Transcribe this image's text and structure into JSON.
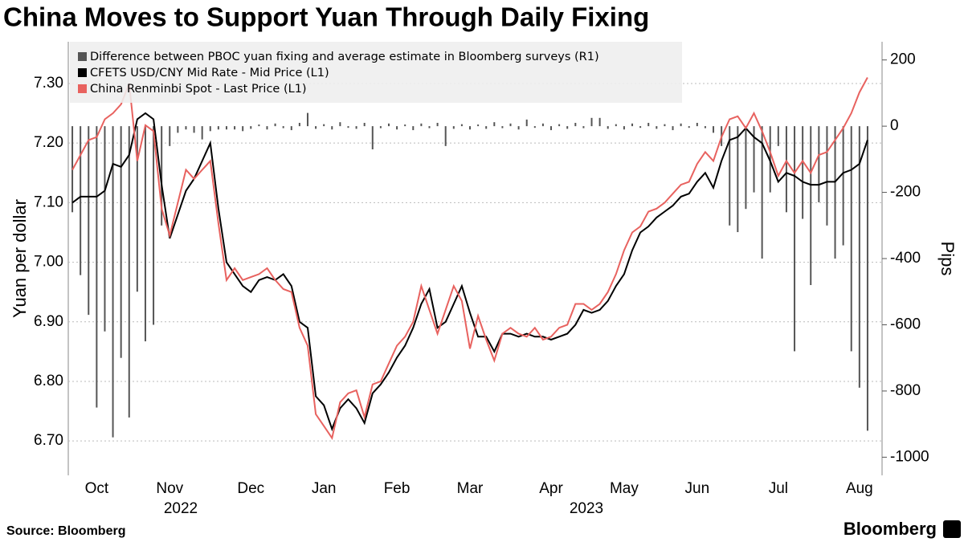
{
  "chart_data": {
    "type": "bar-line",
    "title": "China Moves to Support Yuan Through Daily Fixing",
    "y_label": "Yuan per dollar",
    "y2_label": "Pips",
    "source": "Source: Bloomberg",
    "brand": "Bloomberg",
    "years": [
      "2022",
      "2023"
    ],
    "categories": [
      null,
      null,
      null,
      "Oct",
      null,
      null,
      null,
      null,
      null,
      null,
      null,
      null,
      "Nov",
      null,
      null,
      null,
      null,
      null,
      null,
      null,
      null,
      null,
      "Dec",
      null,
      null,
      null,
      null,
      null,
      null,
      null,
      null,
      "Jan",
      null,
      null,
      null,
      null,
      null,
      null,
      null,
      null,
      "Feb",
      null,
      null,
      null,
      null,
      null,
      null,
      null,
      null,
      "Mar",
      null,
      null,
      null,
      null,
      null,
      null,
      null,
      null,
      null,
      "Apr",
      null,
      null,
      null,
      null,
      null,
      null,
      null,
      null,
      "May",
      null,
      null,
      null,
      null,
      null,
      null,
      null,
      null,
      "Jun",
      null,
      null,
      null,
      null,
      null,
      null,
      null,
      null,
      null,
      "Jul",
      null,
      null,
      null,
      null,
      null,
      null,
      null,
      null,
      null,
      "Aug",
      null
    ],
    "series": [
      {
        "name": "Difference between PBOC yuan fixing and average estimate in Bloomberg surveys (R1)",
        "type": "bar",
        "axis": "y2",
        "color": "#555555",
        "values": [
          -260,
          -450,
          -570,
          -850,
          -620,
          -940,
          -700,
          -880,
          -500,
          -650,
          -600,
          -300,
          -60,
          -20,
          -10,
          -20,
          -40,
          -15,
          -10,
          -10,
          -10,
          -15,
          -8,
          5,
          -10,
          8,
          -6,
          -12,
          10,
          40,
          -8,
          6,
          -10,
          12,
          -5,
          -8,
          10,
          -70,
          -6,
          8,
          -10,
          5,
          -12,
          8,
          -6,
          10,
          -60,
          -8,
          6,
          -10,
          5,
          -8,
          12,
          -6,
          8,
          -10,
          20,
          -5,
          8,
          -12,
          6,
          -8,
          10,
          -6,
          25,
          25,
          -8,
          6,
          -10,
          8,
          -5,
          10,
          -8,
          6,
          -12,
          8,
          -5,
          10,
          -6,
          -20,
          -60,
          -300,
          -320,
          -250,
          -200,
          -400,
          -200,
          -60,
          -260,
          -680,
          -280,
          -480,
          -230,
          -300,
          -400,
          -360,
          -680,
          -790,
          -920
        ]
      },
      {
        "name": "CFETS USD/CNY Mid Rate - Mid Price (L1)",
        "type": "line",
        "axis": "y",
        "color": "#000000",
        "values": [
          7.1,
          7.11,
          7.11,
          7.11,
          7.12,
          7.165,
          7.16,
          7.18,
          7.24,
          7.25,
          7.24,
          7.13,
          7.04,
          7.08,
          7.12,
          7.14,
          7.17,
          7.2,
          7.09,
          7.0,
          6.98,
          6.96,
          6.95,
          6.97,
          6.975,
          6.97,
          6.98,
          6.96,
          6.9,
          6.89,
          6.775,
          6.76,
          6.72,
          6.755,
          6.77,
          6.755,
          6.73,
          6.78,
          6.795,
          6.815,
          6.84,
          6.86,
          6.89,
          6.93,
          6.955,
          6.89,
          6.9,
          6.93,
          6.96,
          6.915,
          6.875,
          6.875,
          6.85,
          6.88,
          6.88,
          6.875,
          6.88,
          6.875,
          6.875,
          6.87,
          6.875,
          6.88,
          6.895,
          6.92,
          6.915,
          6.92,
          6.935,
          6.96,
          6.98,
          7.02,
          7.05,
          7.06,
          7.075,
          7.085,
          7.095,
          7.11,
          7.115,
          7.135,
          7.15,
          7.125,
          7.17,
          7.205,
          7.21,
          7.225,
          7.21,
          7.2,
          7.17,
          7.135,
          7.15,
          7.145,
          7.135,
          7.13,
          7.13,
          7.135,
          7.135,
          7.15,
          7.155,
          7.165,
          7.205
        ]
      },
      {
        "name": "China Renminbi Spot - Last Price (L1)",
        "type": "line",
        "axis": "y",
        "color": "#e8625f",
        "values": [
          7.155,
          7.18,
          7.205,
          7.21,
          7.24,
          7.25,
          7.265,
          7.3,
          7.17,
          7.23,
          7.22,
          7.09,
          7.045,
          7.1,
          7.155,
          7.14,
          7.155,
          7.17,
          7.065,
          6.97,
          6.99,
          6.97,
          6.975,
          6.98,
          6.99,
          6.97,
          6.955,
          6.95,
          6.89,
          6.86,
          6.745,
          6.725,
          6.705,
          6.765,
          6.78,
          6.785,
          6.74,
          6.795,
          6.8,
          6.83,
          6.86,
          6.875,
          6.9,
          6.96,
          6.92,
          6.88,
          6.92,
          6.96,
          6.935,
          6.855,
          6.91,
          6.87,
          6.835,
          6.88,
          6.89,
          6.88,
          6.875,
          6.89,
          6.87,
          6.875,
          6.89,
          6.895,
          6.93,
          6.93,
          6.92,
          6.93,
          6.95,
          6.98,
          7.02,
          7.05,
          7.06,
          7.085,
          7.09,
          7.1,
          7.115,
          7.13,
          7.135,
          7.165,
          7.185,
          7.17,
          7.21,
          7.24,
          7.245,
          7.225,
          7.25,
          7.22,
          7.185,
          7.145,
          7.17,
          7.15,
          7.17,
          7.15,
          7.18,
          7.185,
          7.205,
          7.225,
          7.25,
          7.285,
          7.31
        ]
      }
    ],
    "ylim": [
      6.645,
      7.37
    ],
    "yticks": [
      {
        "value": 6.7,
        "label": "6.70"
      },
      {
        "value": 6.8,
        "label": "6.80"
      },
      {
        "value": 6.9,
        "label": "6.90"
      },
      {
        "value": 7.0,
        "label": "7.00"
      },
      {
        "value": 7.1,
        "label": "7.10"
      },
      {
        "value": 7.2,
        "label": "7.20"
      },
      {
        "value": 7.3,
        "label": "7.30"
      }
    ],
    "y2lim": [
      -1050,
      255
    ],
    "y2ticks": [
      200,
      0,
      -200,
      -400,
      -600,
      -800,
      -1000
    ],
    "grid": true,
    "legend": "top-left"
  }
}
